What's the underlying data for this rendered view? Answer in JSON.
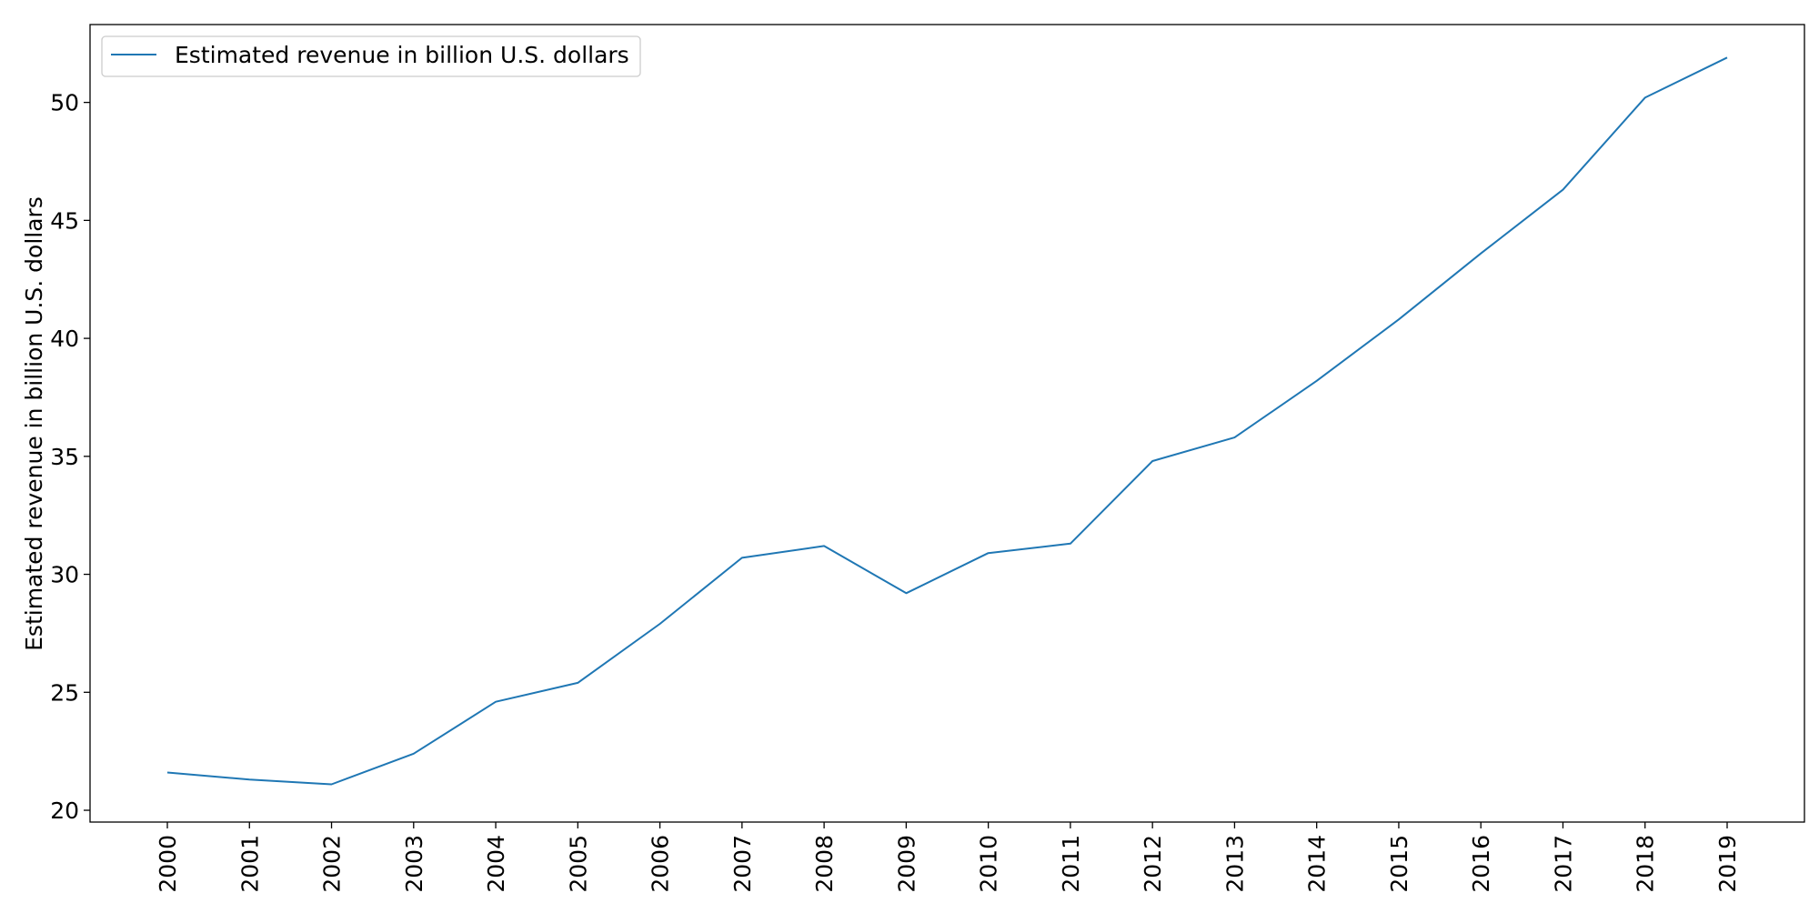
{
  "chart_data": {
    "type": "line",
    "x": [
      "2000",
      "2001",
      "2002",
      "2003",
      "2004",
      "2005",
      "2006",
      "2007",
      "2008",
      "2009",
      "2010",
      "2011",
      "2012",
      "2013",
      "2014",
      "2015",
      "2016",
      "2017",
      "2018",
      "2019"
    ],
    "series": [
      {
        "name": "Estimated revenue in billion U.S. dollars",
        "color": "#1f77b4",
        "values": [
          21.6,
          21.3,
          21.1,
          22.4,
          24.6,
          25.4,
          27.9,
          30.7,
          31.2,
          29.2,
          30.9,
          31.3,
          34.8,
          35.8,
          38.2,
          40.8,
          43.6,
          46.3,
          50.2,
          51.9
        ]
      }
    ],
    "title": "",
    "xlabel": "",
    "ylabel": "Estimated revenue in billion U.S. dollars",
    "ylim": [
      19.5,
      53.3
    ],
    "yticks": [
      20,
      25,
      30,
      35,
      40,
      45,
      50
    ],
    "grid": false,
    "legend": "top-left"
  }
}
